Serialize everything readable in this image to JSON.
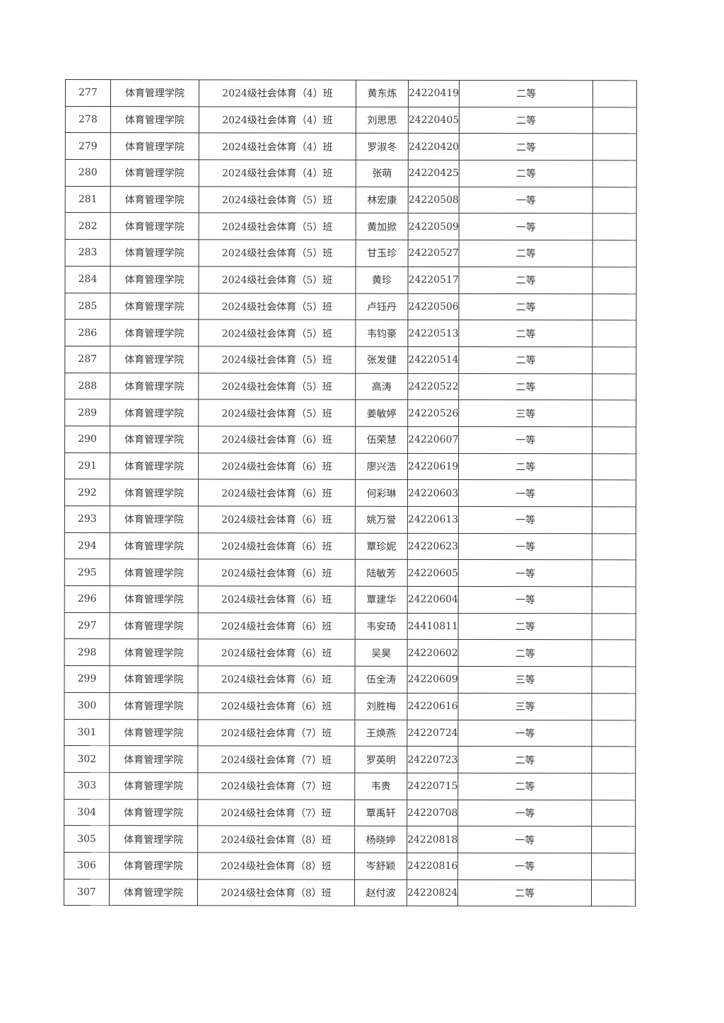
{
  "rows": [
    {
      "no": "277",
      "college": "体育管理学院",
      "class": "2024级社会体育（4）班",
      "name": "黄东炼",
      "id": "24220419",
      "grade": "二等",
      "note": ""
    },
    {
      "no": "278",
      "college": "体育管理学院",
      "class": "2024级社会体育（4）班",
      "name": "刘思思",
      "id": "24220405",
      "grade": "二等",
      "note": ""
    },
    {
      "no": "279",
      "college": "体育管理学院",
      "class": "2024级社会体育（4）班",
      "name": "罗淑冬",
      "id": "24220420",
      "grade": "二等",
      "note": ""
    },
    {
      "no": "280",
      "college": "体育管理学院",
      "class": "2024级社会体育（4）班",
      "name": "张萌",
      "id": "24220425",
      "grade": "二等",
      "note": ""
    },
    {
      "no": "281",
      "college": "体育管理学院",
      "class": "2024级社会体育（5）班",
      "name": "林宏康",
      "id": "24220508",
      "grade": "一等",
      "note": ""
    },
    {
      "no": "282",
      "college": "体育管理学院",
      "class": "2024级社会体育（5）班",
      "name": "黄加掀",
      "id": "24220509",
      "grade": "一等",
      "note": ""
    },
    {
      "no": "283",
      "college": "体育管理学院",
      "class": "2024级社会体育（5）班",
      "name": "甘玉珍",
      "id": "24220527",
      "grade": "二等",
      "note": ""
    },
    {
      "no": "284",
      "college": "体育管理学院",
      "class": "2024级社会体育（5）班",
      "name": "黄珍",
      "id": "24220517",
      "grade": "二等",
      "note": ""
    },
    {
      "no": "285",
      "college": "体育管理学院",
      "class": "2024级社会体育（5）班",
      "name": "卢钰丹",
      "id": "24220506",
      "grade": "二等",
      "note": ""
    },
    {
      "no": "286",
      "college": "体育管理学院",
      "class": "2024级社会体育（5）班",
      "name": "韦钧豪",
      "id": "24220513",
      "grade": "二等",
      "note": ""
    },
    {
      "no": "287",
      "college": "体育管理学院",
      "class": "2024级社会体育（5）班",
      "name": "张发健",
      "id": "24220514",
      "grade": "二等",
      "note": ""
    },
    {
      "no": "288",
      "college": "体育管理学院",
      "class": "2024级社会体育（5）班",
      "name": "高涛",
      "id": "24220522",
      "grade": "二等",
      "note": ""
    },
    {
      "no": "289",
      "college": "体育管理学院",
      "class": "2024级社会体育（5）班",
      "name": "姜敏婷",
      "id": "24220526",
      "grade": "三等",
      "note": ""
    },
    {
      "no": "290",
      "college": "体育管理学院",
      "class": "2024级社会体育（6）班",
      "name": "伍荣慧",
      "id": "24220607",
      "grade": "一等",
      "note": ""
    },
    {
      "no": "291",
      "college": "体育管理学院",
      "class": "2024级社会体育（6）班",
      "name": "廖兴浩",
      "id": "24220619",
      "grade": "二等",
      "note": ""
    },
    {
      "no": "292",
      "college": "体育管理学院",
      "class": "2024级社会体育（6）班",
      "name": "何彩琳",
      "id": "24220603",
      "grade": "一等",
      "note": ""
    },
    {
      "no": "293",
      "college": "体育管理学院",
      "class": "2024级社会体育（6）班",
      "name": "姚万誉",
      "id": "24220613",
      "grade": "一等",
      "note": ""
    },
    {
      "no": "294",
      "college": "体育管理学院",
      "class": "2024级社会体育（6）班",
      "name": "覃珍妮",
      "id": "24220623",
      "grade": "一等",
      "note": ""
    },
    {
      "no": "295",
      "college": "体育管理学院",
      "class": "2024级社会体育（6）班",
      "name": "陆敏芳",
      "id": "24220605",
      "grade": "一等",
      "note": ""
    },
    {
      "no": "296",
      "college": "体育管理学院",
      "class": "2024级社会体育（6）班",
      "name": "覃建华",
      "id": "24220604",
      "grade": "一等",
      "note": ""
    },
    {
      "no": "297",
      "college": "体育管理学院",
      "class": "2024级社会体育（6）班",
      "name": "韦安琦",
      "id": "24410811",
      "grade": "二等",
      "note": ""
    },
    {
      "no": "298",
      "college": "体育管理学院",
      "class": "2024级社会体育（6）班",
      "name": "吴昊",
      "id": "24220602",
      "grade": "二等",
      "note": ""
    },
    {
      "no": "299",
      "college": "体育管理学院",
      "class": "2024级社会体育（6）班",
      "name": "伍全涛",
      "id": "24220609",
      "grade": "三等",
      "note": ""
    },
    {
      "no": "300",
      "college": "体育管理学院",
      "class": "2024级社会体育（6）班",
      "name": "刘胜梅",
      "id": "24220616",
      "grade": "三等",
      "note": ""
    },
    {
      "no": "301",
      "college": "体育管理学院",
      "class": "2024级社会体育（7）班",
      "name": "王焕燕",
      "id": "24220724",
      "grade": "一等",
      "note": ""
    },
    {
      "no": "302",
      "college": "体育管理学院",
      "class": "2024级社会体育（7）班",
      "name": "罗英明",
      "id": "24220723",
      "grade": "二等",
      "note": ""
    },
    {
      "no": "303",
      "college": "体育管理学院",
      "class": "2024级社会体育（7）班",
      "name": "韦贵",
      "id": "24220715",
      "grade": "二等",
      "note": ""
    },
    {
      "no": "304",
      "college": "体育管理学院",
      "class": "2024级社会体育（7）班",
      "name": "覃禹轩",
      "id": "24220708",
      "grade": "一等",
      "note": ""
    },
    {
      "no": "305",
      "college": "体育管理学院",
      "class": "2024级社会体育（8）班",
      "name": "杨晓婷",
      "id": "24220818",
      "grade": "一等",
      "note": ""
    },
    {
      "no": "306",
      "college": "体育管理学院",
      "class": "2024级社会体育（8）班",
      "name": "岑舒颖",
      "id": "24220816",
      "grade": "一等",
      "note": ""
    },
    {
      "no": "307",
      "college": "体育管理学院",
      "class": "2024级社会体育（8）班",
      "name": "赵付波",
      "id": "24220824",
      "grade": "二等",
      "note": ""
    }
  ]
}
